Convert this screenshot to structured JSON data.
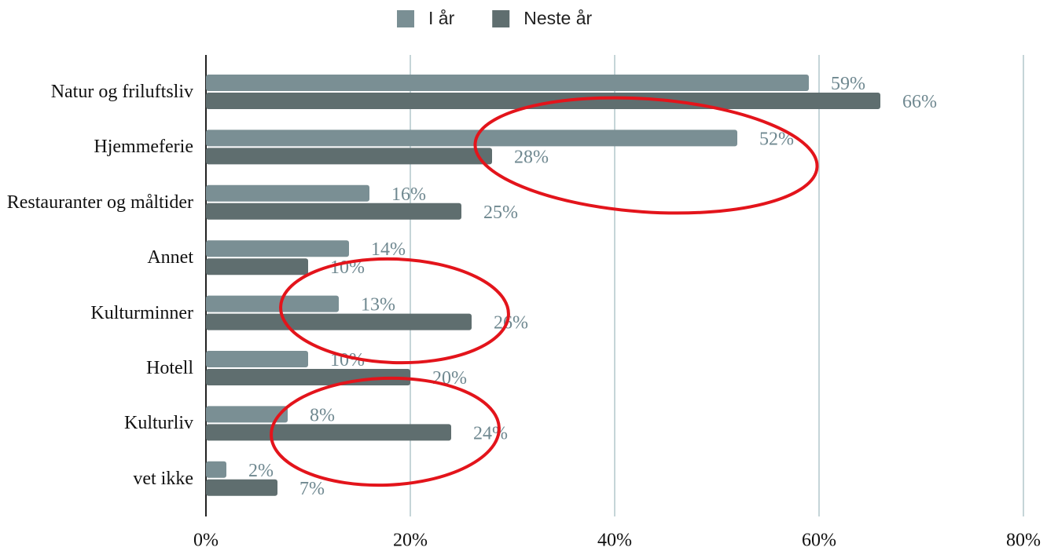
{
  "chart_data": {
    "type": "bar",
    "orientation": "horizontal",
    "categories": [
      "Natur og friluftsliv",
      "Hjemmeferie",
      "Restauranter og måltider",
      "Annet",
      "Kulturminner",
      "Hotell",
      "Kulturliv",
      "vet ikke"
    ],
    "series": [
      {
        "name": "I år",
        "color": "#7a8f94",
        "values": [
          59,
          52,
          16,
          14,
          13,
          10,
          8,
          2
        ],
        "value_labels": [
          "59%",
          "52%",
          "16%",
          "14%",
          "13%",
          "10%",
          "8%",
          "2%"
        ]
      },
      {
        "name": "Neste år",
        "color": "#5f6e6f",
        "values": [
          66,
          28,
          25,
          10,
          26,
          20,
          24,
          7
        ],
        "value_labels": [
          "66%",
          "28%",
          "25%",
          "10%",
          "26%",
          "20%",
          "24%",
          "7%"
        ]
      }
    ],
    "xlim": [
      0,
      80
    ],
    "xticks": [
      {
        "value": 0,
        "label": "0%"
      },
      {
        "value": 20,
        "label": "20%"
      },
      {
        "value": 40,
        "label": "40%"
      },
      {
        "value": 60,
        "label": "60%"
      },
      {
        "value": 80,
        "label": "80%"
      }
    ],
    "grid": true,
    "legend": "top"
  }
}
